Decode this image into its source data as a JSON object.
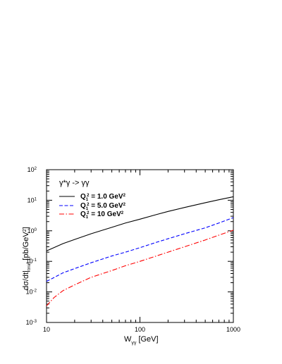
{
  "chart_data": {
    "type": "line",
    "title": "",
    "process_label": "γ*γ -> γγ",
    "xlabel": "W",
    "xlabel_sub": "γγ",
    "xlabel_unit": " [GeV]",
    "ylabel": "dσ/dt|",
    "ylabel_sub": "tmin",
    "ylabel_unit": "   [pb/GeV",
    "ylabel_unit_sup": "2",
    "ylabel_unit_close": "]",
    "xscale": "log",
    "yscale": "log",
    "xlim": [
      10,
      1000
    ],
    "ylim": [
      0.001,
      100
    ],
    "x_ticks": [
      {
        "value": 10,
        "label": "10"
      },
      {
        "value": 100,
        "label": "100"
      },
      {
        "value": 1000,
        "label": "1000"
      }
    ],
    "y_ticks": [
      {
        "value": 0.001,
        "base": "10",
        "exp": "-3"
      },
      {
        "value": 0.01,
        "base": "10",
        "exp": "-2"
      },
      {
        "value": 0.1,
        "base": "10",
        "exp": "-1"
      },
      {
        "value": 1,
        "base": "10",
        "exp": "0"
      },
      {
        "value": 10,
        "base": "10",
        "exp": "1"
      },
      {
        "value": 100,
        "base": "10",
        "exp": "2"
      }
    ],
    "grid": false,
    "legend_position": "top-left",
    "series": [
      {
        "name": "Q₁² = 1.0 GeV²",
        "color": "#000000",
        "dash": "solid",
        "x": [
          10,
          15,
          20,
          30,
          50,
          70,
          100,
          150,
          200,
          300,
          500,
          700,
          1000
        ],
        "y": [
          0.22,
          0.38,
          0.52,
          0.8,
          1.3,
          1.8,
          2.4,
          3.4,
          4.3,
          5.8,
          8.3,
          10.4,
          13.0
        ]
      },
      {
        "name": "Q₁² = 5.0 GeV²",
        "color": "#0000ff",
        "dash": "dashed",
        "x": [
          10,
          15,
          20,
          30,
          50,
          70,
          100,
          150,
          200,
          300,
          500,
          700,
          1000
        ],
        "y": [
          0.022,
          0.042,
          0.058,
          0.09,
          0.15,
          0.2,
          0.28,
          0.42,
          0.55,
          0.8,
          1.25,
          1.8,
          2.7
        ]
      },
      {
        "name": "Q₁² = 10 GeV²",
        "color": "#ff0000",
        "dash": "dashdot",
        "x": [
          10,
          12,
          15,
          20,
          30,
          50,
          70,
          100,
          150,
          200,
          300,
          500,
          700,
          1000
        ],
        "y": [
          0.0035,
          0.0065,
          0.011,
          0.017,
          0.03,
          0.05,
          0.072,
          0.1,
          0.15,
          0.2,
          0.3,
          0.5,
          0.72,
          1.05
        ]
      }
    ],
    "legend_labels": [
      {
        "main": "Q",
        "sub": "1",
        "sup": "2",
        "rest": " = 1.0 GeV",
        "sup2": "2"
      },
      {
        "main": "Q",
        "sub": "1",
        "sup": "2",
        "rest": " = 5.0 GeV",
        "sup2": "2"
      },
      {
        "main": "Q",
        "sub": "1",
        "sup": "2",
        "rest": " = 10 GeV",
        "sup2": "2"
      }
    ]
  }
}
